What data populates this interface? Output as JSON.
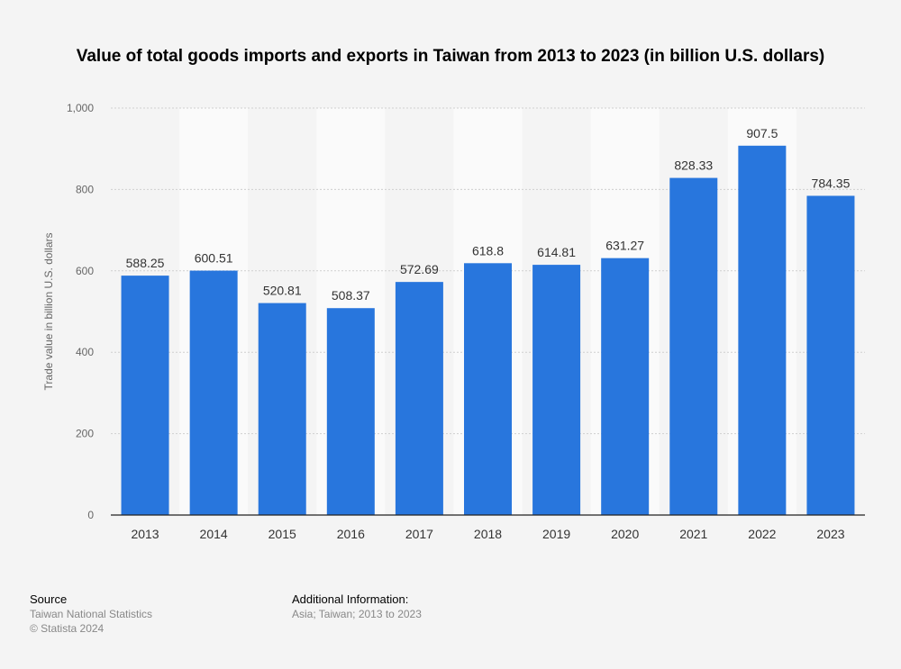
{
  "chart_data": {
    "type": "bar",
    "title": "Value of total goods imports and exports in Taiwan from 2013 to 2023 (in billion U.S. dollars)",
    "xlabel": "",
    "ylabel": "Trade value in billion U.S. dollars",
    "categories": [
      "2013",
      "2014",
      "2015",
      "2016",
      "2017",
      "2018",
      "2019",
      "2020",
      "2021",
      "2022",
      "2023"
    ],
    "values": [
      588.25,
      600.51,
      520.81,
      508.37,
      572.69,
      618.8,
      614.81,
      631.27,
      828.33,
      907.5,
      784.35
    ],
    "data_labels": [
      "588.25",
      "600.51",
      "520.81",
      "508.37",
      "572.69",
      "618.8",
      "614.81",
      "631.27",
      "828.33",
      "907.5",
      "784.35"
    ],
    "ylim": [
      0,
      1000
    ],
    "yticks": [
      0,
      200,
      400,
      600,
      800,
      1000
    ],
    "ytick_labels": [
      "0",
      "200",
      "400",
      "600",
      "800",
      "1,000"
    ],
    "grid": true,
    "bar_color": "#2876dd"
  },
  "footer": {
    "source_heading": "Source",
    "source_text": "Taiwan National Statistics",
    "copyright": "© Statista 2024",
    "info_heading": "Additional Information:",
    "info_text": "Asia; Taiwan; 2013 to 2023"
  }
}
